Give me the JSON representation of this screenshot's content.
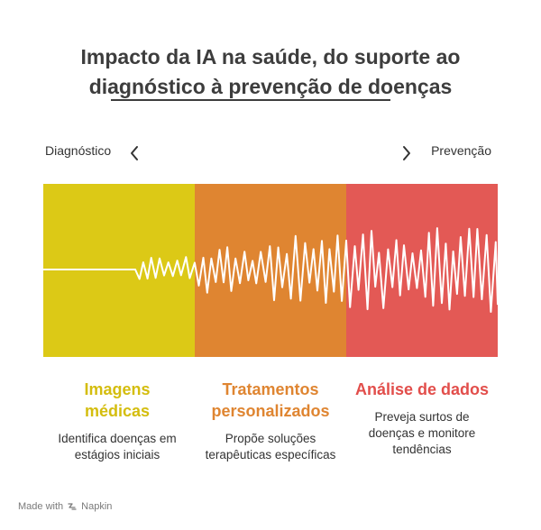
{
  "title": {
    "line1": "Impacto da IA na saúde, do suporte ao",
    "line2": "diagnóstico à prevenção de doenças"
  },
  "axis": {
    "left_label": "Diagnóstico",
    "right_label": "Prevenção"
  },
  "stages": [
    {
      "title": "Imagens médicas",
      "description": "Identifica doenças em estágios iniciais",
      "color": "#dcc916"
    },
    {
      "title": "Tratamentos personalizados",
      "description": "Propõe soluções terapêuticas específicas",
      "color": "#df8531"
    },
    {
      "title": "Análise de dados",
      "description": "Preveja surtos de doenças e monitore tendências",
      "color": "#e35955"
    }
  ],
  "footer": {
    "made_with": "Made with",
    "brand": "Napkin"
  }
}
